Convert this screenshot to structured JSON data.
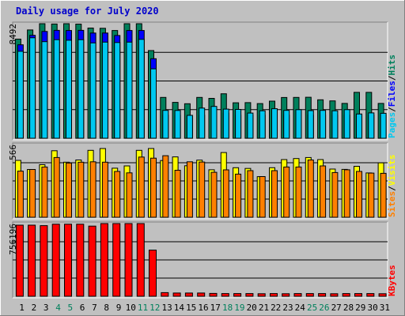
{
  "chart_data": {
    "type": "bar",
    "title": "Daily usage for July 2020",
    "categories": [
      "1",
      "2",
      "3",
      "4",
      "5",
      "6",
      "7",
      "8",
      "9",
      "10",
      "11",
      "12",
      "13",
      "14",
      "15",
      "16",
      "17",
      "18",
      "19",
      "20",
      "21",
      "22",
      "23",
      "24",
      "25",
      "26",
      "27",
      "28",
      "29",
      "30",
      "31"
    ],
    "weekend_days": [
      "4",
      "5",
      "11",
      "12",
      "18",
      "19",
      "25",
      "26"
    ],
    "colors": {
      "hits": "#00805c",
      "files": "#0000ff",
      "pages": "#00c8f0",
      "visits": "#ffff00",
      "sites": "#ff8000",
      "kbytes": "#ff0000",
      "title": "#0000cc",
      "weekday_label": "#000000",
      "weekend_label": "#00805c"
    },
    "panels": [
      {
        "ymax_label": "8492",
        "ymax": 8492,
        "right_labels": [
          {
            "text": "Pages",
            "color": "#00c8f0"
          },
          {
            "text": "/",
            "color": "#000000"
          },
          {
            "text": "Files",
            "color": "#0000ff"
          },
          {
            "text": "/",
            "color": "#000000"
          },
          {
            "text": "Hits",
            "color": "#00805c"
          }
        ],
        "series": [
          {
            "name": "Hits",
            "values": [
              7350,
              8030,
              8490,
              8470,
              8490,
              8460,
              8170,
              8150,
              7990,
              8490,
              8490,
              6500,
              3030,
              2660,
              2560,
              3030,
              2960,
              3300,
              2630,
              2640,
              2570,
              2750,
              3020,
              3030,
              3040,
              2850,
              2770,
              2580,
              3400,
              3400,
              2580
            ]
          },
          {
            "name": "Files",
            "values": [
              6930,
              7630,
              7920,
              8000,
              7990,
              8000,
              7800,
              7800,
              7620,
              7990,
              7990,
              5900,
              1710,
              1710,
              1610,
              1710,
              1710,
              1860,
              1710,
              1710,
              1710,
              1710,
              1710,
              1710,
              1710,
              1710,
              1710,
              1710,
              1710,
              1710,
              1710
            ]
          },
          {
            "name": "Pages",
            "values": [
              6450,
              7450,
              7160,
              7310,
              7270,
              7310,
              7070,
              7130,
              7100,
              7130,
              7330,
              5150,
              2070,
              2060,
              1700,
              2240,
              2360,
              2160,
              2140,
              1870,
              2040,
              2190,
              2070,
              2120,
              2050,
              2070,
              2040,
              2120,
              1800,
              1880,
              1850
            ]
          }
        ]
      },
      {
        "ymax_label": "566",
        "ymax": 566,
        "right_labels": [
          {
            "text": "Sites",
            "color": "#ff8000"
          },
          {
            "text": "/",
            "color": "#000000"
          },
          {
            "text": "Visits",
            "color": "#ffff00"
          }
        ],
        "series": [
          {
            "name": "Visits",
            "values": [
              443,
              372,
              409,
              518,
              429,
              446,
              521,
              535,
              382,
              400,
              521,
              535,
              442,
              470,
              401,
              445,
              370,
              504,
              386,
              380,
              316,
              386,
              449,
              457,
              465,
              449,
              375,
              373,
              397,
              345,
              424
            ]
          },
          {
            "name": "Sites",
            "values": [
              359,
              372,
              391,
              465,
              422,
              429,
              432,
              429,
              357,
              346,
              469,
              460,
              479,
              366,
              432,
              430,
              350,
              369,
              336,
              363,
              317,
              363,
              391,
              391,
              446,
              400,
              348,
              370,
              357,
              344,
              342
            ]
          }
        ]
      },
      {
        "ymax_label": "756196",
        "ymax": 756196,
        "right_labels": [
          {
            "text": "KBytes",
            "color": "#ff0000"
          }
        ],
        "series": [
          {
            "name": "KBytes",
            "values": [
              740000,
              740000,
              735000,
              750000,
              750000,
              750000,
              730000,
              756196,
              756196,
              756196,
              756196,
              480000,
              38000,
              34000,
              34000,
              34000,
              30000,
              28000,
              28000,
              28000,
              26000,
              28000,
              26000,
              28000,
              28000,
              28000,
              26000,
              28000,
              28000,
              28000,
              26000
            ]
          }
        ]
      }
    ]
  }
}
